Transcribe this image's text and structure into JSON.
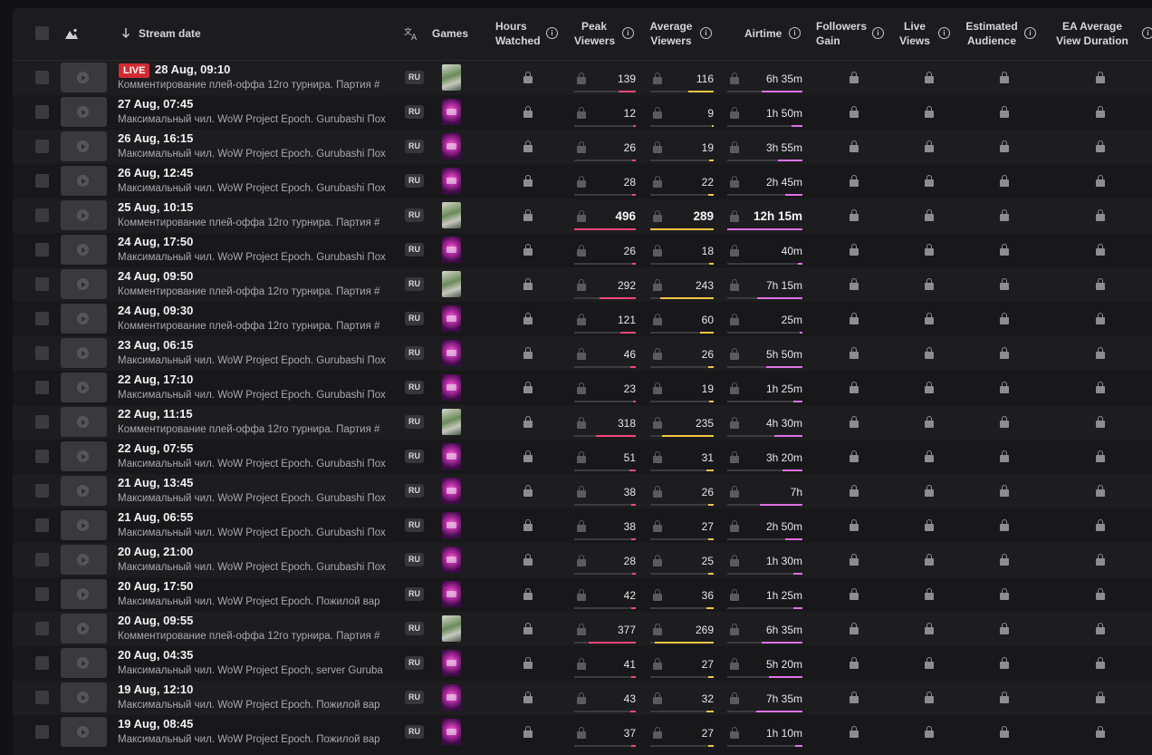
{
  "colors": {
    "peak": "#f0487a",
    "average": "#f5c542",
    "airtime": "#e070e6",
    "live": "#d12a32"
  },
  "header": {
    "stream_date": "Stream date",
    "games": "Games",
    "hours_watched": [
      "Hours",
      "Watched"
    ],
    "peak_viewers": [
      "Peak",
      "Viewers"
    ],
    "average_viewers": [
      "Average",
      "Viewers"
    ],
    "airtime": "Airtime",
    "followers_gain": [
      "Followers",
      "Gain"
    ],
    "live_views": [
      "Live",
      "Views"
    ],
    "estimated_audience": [
      "Estimated",
      "Audience"
    ],
    "ea_avg_view_duration": [
      "EA Average",
      "View Duration"
    ],
    "sort_icon": "arrow-down-icon",
    "translate_icon": "translate-icon",
    "image_icon": "image-icon",
    "info_icon": "info-icon",
    "info_glyph": "i"
  },
  "live_label": "LIVE",
  "rows": [
    {
      "date": "28 Aug, 09:10",
      "live": true,
      "title": "Комментирование плей-оффа 12го турнира. Партия #",
      "lang": "RU",
      "game": "chess",
      "peak": 139,
      "peak_fill": 0.28,
      "avg": 116,
      "avg_fill": 0.4,
      "airtime": "6h 35m",
      "air_fill": 0.54
    },
    {
      "date": "27 Aug, 07:45",
      "live": false,
      "title": "Максимальный чил. WoW Project Epoch. Gurubashi Пох",
      "lang": "RU",
      "game": "wow",
      "peak": 12,
      "peak_fill": 0.04,
      "avg": 9,
      "avg_fill": 0.03,
      "airtime": "1h 50m",
      "air_fill": 0.15
    },
    {
      "date": "26 Aug, 16:15",
      "live": false,
      "title": "Максимальный чил. WoW Project Epoch. Gurubashi Пох",
      "lang": "RU",
      "game": "wow",
      "peak": 26,
      "peak_fill": 0.06,
      "avg": 19,
      "avg_fill": 0.07,
      "airtime": "3h 55m",
      "air_fill": 0.32
    },
    {
      "date": "26 Aug, 12:45",
      "live": false,
      "title": "Максимальный чил. WoW Project Epoch. Gurubashi Пох",
      "lang": "RU",
      "game": "wow",
      "peak": 28,
      "peak_fill": 0.06,
      "avg": 22,
      "avg_fill": 0.08,
      "airtime": "2h 45m",
      "air_fill": 0.23
    },
    {
      "date": "25 Aug, 10:15",
      "live": false,
      "title": "Комментирование плей-оффа 12го турнира. Партия #",
      "lang": "RU",
      "game": "chess",
      "peak": 496,
      "peak_fill": 1.0,
      "avg": 289,
      "avg_fill": 1.0,
      "airtime": "12h 15m",
      "air_fill": 1.0,
      "highlight": true
    },
    {
      "date": "24 Aug, 17:50",
      "live": false,
      "title": "Максимальный чил. WoW Project Epoch. Gurubashi Пох",
      "lang": "RU",
      "game": "wow",
      "peak": 26,
      "peak_fill": 0.06,
      "avg": 18,
      "avg_fill": 0.07,
      "airtime": "40m",
      "air_fill": 0.06
    },
    {
      "date": "24 Aug, 09:50",
      "live": false,
      "title": "Комментирование плей-оффа 12го турнира. Партия #",
      "lang": "RU",
      "game": "chess",
      "peak": 292,
      "peak_fill": 0.59,
      "avg": 243,
      "avg_fill": 0.84,
      "airtime": "7h 15m",
      "air_fill": 0.6
    },
    {
      "date": "24 Aug, 09:30",
      "live": false,
      "title": "Комментирование плей-оффа 12го турнира. Партия #",
      "lang": "RU",
      "game": "wow",
      "peak": 121,
      "peak_fill": 0.25,
      "avg": 60,
      "avg_fill": 0.21,
      "airtime": "25m",
      "air_fill": 0.04
    },
    {
      "date": "23 Aug, 06:15",
      "live": false,
      "title": "Максимальный чил. WoW Project Epoch. Gurubashi Пох",
      "lang": "RU",
      "game": "wow",
      "peak": 46,
      "peak_fill": 0.09,
      "avg": 26,
      "avg_fill": 0.09,
      "airtime": "5h 50m",
      "air_fill": 0.48
    },
    {
      "date": "22 Aug, 17:10",
      "live": false,
      "title": "Максимальный чил. WoW Project Epoch. Gurubashi Пох",
      "lang": "RU",
      "game": "wow",
      "peak": 23,
      "peak_fill": 0.05,
      "avg": 19,
      "avg_fill": 0.07,
      "airtime": "1h 25m",
      "air_fill": 0.12
    },
    {
      "date": "22 Aug, 11:15",
      "live": false,
      "title": "Комментирование плей-оффа 12го турнира. Партия #",
      "lang": "RU",
      "game": "chess",
      "peak": 318,
      "peak_fill": 0.64,
      "avg": 235,
      "avg_fill": 0.81,
      "airtime": "4h 30m",
      "air_fill": 0.37
    },
    {
      "date": "22 Aug, 07:55",
      "live": false,
      "title": "Максимальный чил. WoW Project Epoch. Gurubashi Пох",
      "lang": "RU",
      "game": "wow",
      "peak": 51,
      "peak_fill": 0.1,
      "avg": 31,
      "avg_fill": 0.11,
      "airtime": "3h 20m",
      "air_fill": 0.27
    },
    {
      "date": "21 Aug, 13:45",
      "live": false,
      "title": "Максимальный чил. WoW Project Epoch. Gurubashi Пох",
      "lang": "RU",
      "game": "wow",
      "peak": 38,
      "peak_fill": 0.08,
      "avg": 26,
      "avg_fill": 0.09,
      "airtime": "7h",
      "air_fill": 0.57
    },
    {
      "date": "21 Aug, 06:55",
      "live": false,
      "title": "Максимальный чил. WoW Project Epoch. Gurubashi Пох",
      "lang": "RU",
      "game": "wow",
      "peak": 38,
      "peak_fill": 0.08,
      "avg": 27,
      "avg_fill": 0.09,
      "airtime": "2h 50m",
      "air_fill": 0.23
    },
    {
      "date": "20 Aug, 21:00",
      "live": false,
      "title": "Максимальный чил. WoW Project Epoch. Gurubashi Пох",
      "lang": "RU",
      "game": "wow",
      "peak": 28,
      "peak_fill": 0.06,
      "avg": 25,
      "avg_fill": 0.09,
      "airtime": "1h 30m",
      "air_fill": 0.12
    },
    {
      "date": "20 Aug, 17:50",
      "live": false,
      "title": "Максимальный чил. WoW Project Epoch. Пожилой вар",
      "lang": "RU",
      "game": "wow",
      "peak": 42,
      "peak_fill": 0.08,
      "avg": 36,
      "avg_fill": 0.12,
      "airtime": "1h 25m",
      "air_fill": 0.12
    },
    {
      "date": "20 Aug, 09:55",
      "live": false,
      "title": "Комментирование плей-оффа 12го турнира. Партия #",
      "lang": "RU",
      "game": "chess",
      "peak": 377,
      "peak_fill": 0.76,
      "avg": 269,
      "avg_fill": 0.93,
      "airtime": "6h 35m",
      "air_fill": 0.54
    },
    {
      "date": "20 Aug, 04:35",
      "live": false,
      "title": "Максимальный чил. WoW Project Epoch, server Guruba",
      "lang": "RU",
      "game": "wow",
      "peak": 41,
      "peak_fill": 0.08,
      "avg": 27,
      "avg_fill": 0.09,
      "airtime": "5h 20m",
      "air_fill": 0.44
    },
    {
      "date": "19 Aug, 12:10",
      "live": false,
      "title": "Максимальный чил. WoW Project Epoch. Пожилой вар",
      "lang": "RU",
      "game": "wow",
      "peak": 43,
      "peak_fill": 0.09,
      "avg": 32,
      "avg_fill": 0.11,
      "airtime": "7h 35m",
      "air_fill": 0.62
    },
    {
      "date": "19 Aug, 08:45",
      "live": false,
      "title": "Максимальный чил. WoW Project Epoch. Пожилой вар",
      "lang": "RU",
      "game": "wow",
      "peak": 37,
      "peak_fill": 0.07,
      "avg": 27,
      "avg_fill": 0.09,
      "airtime": "1h 10m",
      "air_fill": 0.1
    }
  ]
}
